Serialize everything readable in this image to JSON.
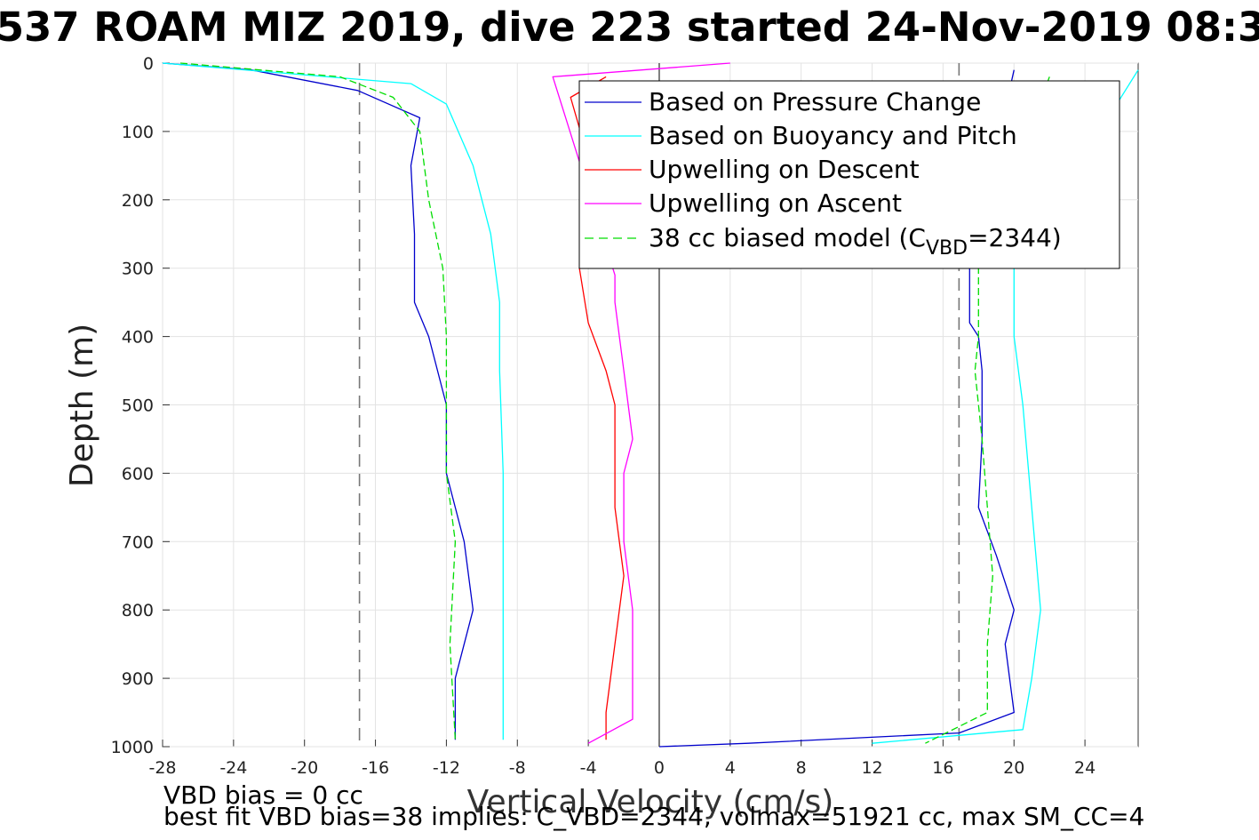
{
  "chart_data": {
    "type": "line",
    "title": "537 ROAM MIZ 2019, dive 223 started 24-Nov-2019 08:3",
    "xlabel": "Vertical Velocity (cm/s)",
    "ylabel": "Depth (m)",
    "xlim": [
      -28,
      27
    ],
    "ylim": [
      0,
      1000
    ],
    "y_reversed": true,
    "grid": true,
    "xticks": [
      "-28",
      "-24",
      "-20",
      "-16",
      "-12",
      "-8",
      "-4",
      "0",
      "4",
      "8",
      "12",
      "16",
      "20",
      "24"
    ],
    "yticks": [
      "0",
      "100",
      "200",
      "300",
      "400",
      "500",
      "600",
      "700",
      "800",
      "900",
      "1000"
    ],
    "reference_lines": [
      {
        "axis": "x",
        "value": -16.9,
        "style": "dashed",
        "color": "#777777"
      },
      {
        "axis": "x",
        "value": 16.9,
        "style": "dashed",
        "color": "#777777"
      },
      {
        "axis": "x",
        "value": 0,
        "style": "solid",
        "color": "#000000"
      }
    ],
    "legend": {
      "position": "top-right",
      "entries": [
        {
          "label": "Based on Pressure Change",
          "color": "#0000cc",
          "style": "solid"
        },
        {
          "label": "Based on Buoyancy and Pitch",
          "color": "#00ffff",
          "style": "solid"
        },
        {
          "label": "Upwelling on Descent",
          "color": "#ff0000",
          "style": "solid"
        },
        {
          "label": "Upwelling on Ascent",
          "color": "#ff00ff",
          "style": "solid"
        },
        {
          "label_main": "38 cc biased model (C",
          "label_sub": "VBD",
          "label_end": "=2344)",
          "color": "#00dd00",
          "style": "dashed"
        }
      ]
    },
    "series": [
      {
        "name": "Based on Pressure Change",
        "color": "#0000cc",
        "x": [
          -28,
          -23,
          -17,
          -13.5,
          -14,
          -13.8,
          -13.8,
          -13,
          -12,
          -12,
          -11,
          -10.5,
          -11.5,
          -11.5
        ],
        "y": [
          0,
          10,
          40,
          80,
          150,
          250,
          350,
          400,
          500,
          600,
          700,
          800,
          900,
          990
        ]
      },
      {
        "name": "Based on Pressure Change",
        "color": "#0000cc",
        "x": [
          20,
          17.5,
          17.5,
          18,
          18.2,
          18.2,
          18,
          19,
          20,
          19.5,
          20,
          16.9,
          5,
          0
        ],
        "y": [
          10,
          300,
          380,
          400,
          450,
          550,
          650,
          720,
          800,
          850,
          950,
          980,
          995,
          1000
        ]
      },
      {
        "name": "Based on Buoyancy and Pitch",
        "color": "#00ffff",
        "x": [
          -28,
          -14,
          -12,
          -10.5,
          -9.5,
          -9,
          -9,
          -8.8,
          -8.8,
          -8.8,
          -8.8
        ],
        "y": [
          0,
          30,
          60,
          150,
          250,
          350,
          450,
          600,
          750,
          900,
          990
        ]
      },
      {
        "name": "Based on Buoyancy and Pitch",
        "color": "#00ffff",
        "x": [
          27,
          20,
          20,
          20.5,
          21,
          21.5,
          21,
          20.5,
          12
        ],
        "y": [
          10,
          300,
          400,
          500,
          650,
          800,
          900,
          975,
          995
        ]
      },
      {
        "name": "Upwelling on Descent",
        "color": "#ff0000",
        "x": [
          -3,
          -5,
          -3,
          -4.5,
          -4,
          -3,
          -2.5,
          -2.5,
          -2.5,
          -2,
          -2.5,
          -3,
          -3
        ],
        "y": [
          20,
          50,
          230,
          300,
          380,
          450,
          500,
          600,
          650,
          750,
          850,
          950,
          990
        ]
      },
      {
        "name": "Upwelling on Ascent",
        "color": "#ff00ff",
        "x": [
          4,
          -6,
          -2.5,
          -2.5,
          -2,
          -1.5,
          -2,
          -2,
          -1.5,
          -1.5,
          -1.5,
          -4
        ],
        "y": [
          0,
          20,
          310,
          350,
          450,
          550,
          600,
          700,
          800,
          900,
          960,
          995
        ]
      },
      {
        "name": "38 cc biased model (C_VBD=2344)",
        "color": "#00dd00",
        "dashed": true,
        "x": [
          -27,
          -18,
          -15,
          -13.5,
          -13,
          -12.2,
          -12,
          -12,
          -12,
          -11.5,
          -11.8,
          -11.5
        ],
        "y": [
          0,
          20,
          50,
          100,
          200,
          300,
          400,
          500,
          600,
          700,
          850,
          990
        ]
      },
      {
        "name": "38 cc biased model (C_VBD=2344)",
        "color": "#00dd00",
        "dashed": true,
        "x": [
          22,
          18,
          18,
          17.8,
          18.2,
          18.5,
          18.8,
          18.5,
          18.5,
          15
        ],
        "y": [
          20,
          300,
          400,
          450,
          550,
          650,
          750,
          850,
          950,
          995
        ]
      }
    ]
  },
  "footer": {
    "line1": "VBD bias = 0 cc",
    "line2": "best fit VBD bias=38 implies: C_VBD=2344, volmax=51921 cc, max SM_CC=4"
  }
}
